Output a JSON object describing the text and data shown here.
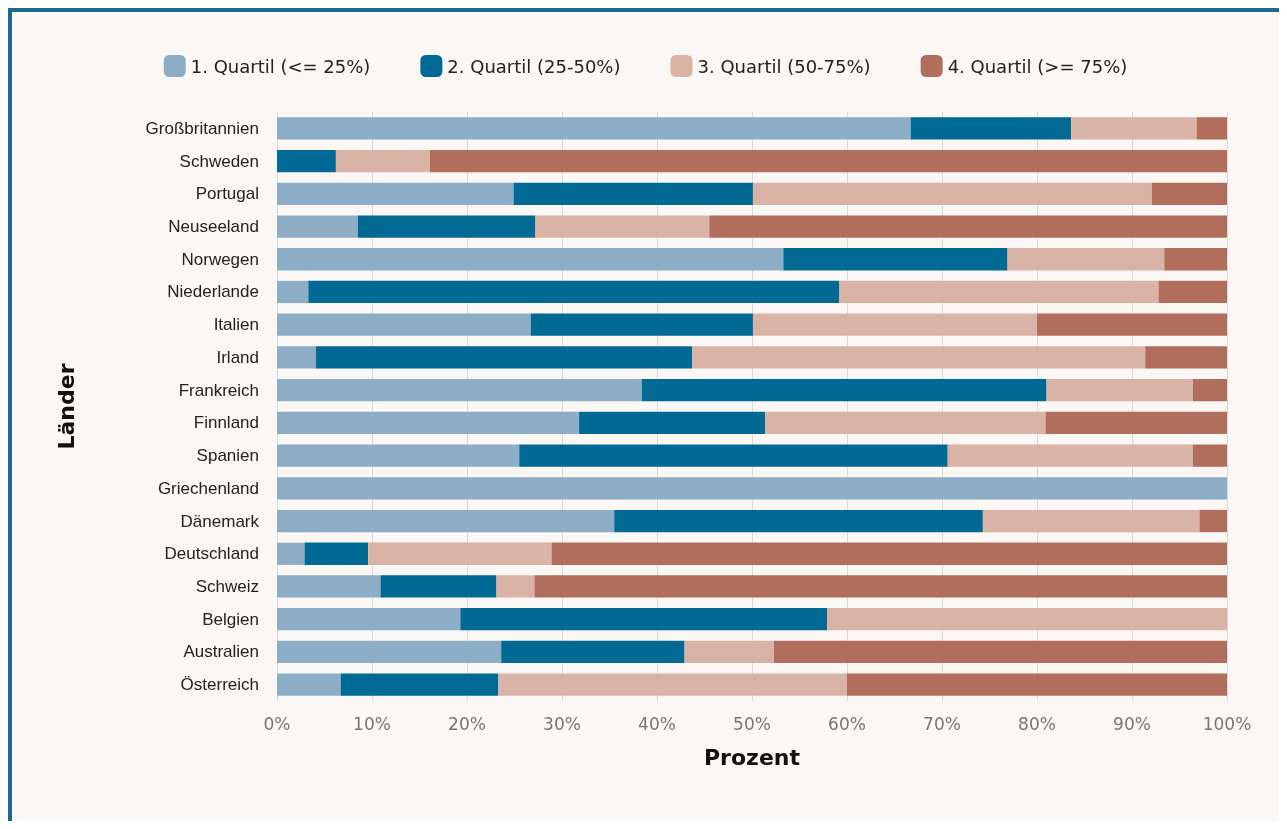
{
  "chart_data": {
    "type": "bar",
    "orientation": "horizontal",
    "stacked": true,
    "xlabel": "Prozent",
    "ylabel": "Länder",
    "categories": [
      "Großbritannien",
      "Schweden",
      "Portugal",
      "Neuseeland",
      "Norwegen",
      "Niederlande",
      "Italien",
      "Irland",
      "Frankreich",
      "Finnland",
      "Spanien",
      "Griechenland",
      "Dänemark",
      "Deutschland",
      "Schweiz",
      "Belgien",
      "Australien",
      "Österreich"
    ],
    "series": [
      {
        "name": "1. Quartil (<= 25%)",
        "color": "#8eadc7",
        "values": [
          66.7,
          0,
          24.9,
          8.5,
          53.3,
          3.3,
          26.7,
          4.1,
          38.4,
          31.8,
          25.5,
          100,
          35.5,
          2.9,
          10.9,
          19.3,
          23.6,
          6.7
        ]
      },
      {
        "name": "2. Quartil (25-50%)",
        "color": "#006994",
        "values": [
          16.9,
          6.2,
          25.2,
          18.7,
          23.6,
          55.9,
          23.4,
          39.6,
          42.6,
          19.6,
          45.1,
          0,
          38.8,
          6.7,
          12.2,
          38.6,
          19.3,
          16.6
        ]
      },
      {
        "name": "3. Quartil (50-75%)",
        "color": "#d9b4a6",
        "values": [
          13.2,
          9.9,
          42.0,
          18.3,
          16.5,
          33.6,
          29.9,
          47.7,
          15.4,
          29.5,
          25.8,
          0,
          22.8,
          19.3,
          4.0,
          42.1,
          9.4,
          36.7
        ]
      },
      {
        "name": "4. Quartil (>= 75%)",
        "color": "#b26e5c",
        "values": [
          3.2,
          83.9,
          7.9,
          54.5,
          6.6,
          7.2,
          20.0,
          8.6,
          3.6,
          19.1,
          3.6,
          0,
          2.9,
          71.1,
          72.9,
          0,
          47.7,
          40.0
        ]
      }
    ],
    "xlim": [
      0,
      100
    ],
    "xticks": [
      {
        "value": 0,
        "label": "0%"
      },
      {
        "value": 10,
        "label": "10%"
      },
      {
        "value": 20,
        "label": "20%"
      },
      {
        "value": 30,
        "label": "30%"
      },
      {
        "value": 40,
        "label": "40%"
      },
      {
        "value": 50,
        "label": "50%"
      },
      {
        "value": 60,
        "label": "60%"
      },
      {
        "value": 70,
        "label": "70%"
      },
      {
        "value": 80,
        "label": "80%"
      },
      {
        "value": 90,
        "label": "90%"
      },
      {
        "value": 100,
        "label": "100%"
      }
    ],
    "grid": "x",
    "legend": "top"
  }
}
